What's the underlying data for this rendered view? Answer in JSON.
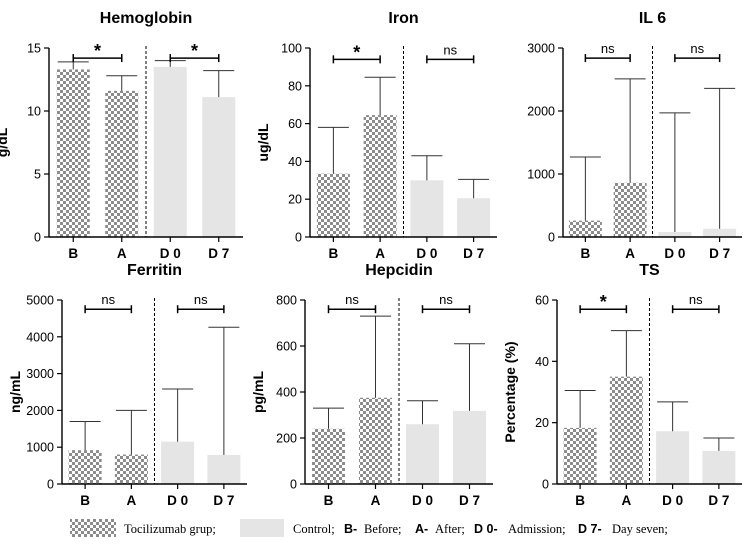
{
  "colors": {
    "control": "#e5e5e5",
    "hatch_dark": "#8c8c8c",
    "hatch_light": "#ffffff",
    "axis": "#000000"
  },
  "legend": {
    "tcz": "Tocilizumab grup;",
    "control": "Control;",
    "b_key": "B-",
    "b_text": "Before;",
    "a_key": "A-",
    "a_text": "After;",
    "d0_key": "D 0-",
    "d0_text": "Admission;",
    "d7_key": "D 7-",
    "d7_text": "Day seven;"
  },
  "chart_data": [
    {
      "type": "bar",
      "title": "Hemoglobin",
      "ylabel": "g/dL",
      "categories": [
        "B",
        "A",
        "D 0",
        "D 7"
      ],
      "values": [
        13.3,
        11.6,
        13.5,
        11.1
      ],
      "errors": [
        0.6,
        1.2,
        0.5,
        2.1
      ],
      "ylim": [
        0,
        15
      ],
      "yticks": [
        0,
        5,
        10,
        15
      ],
      "ytick_labels": [
        "0",
        "5",
        "10",
        "15"
      ],
      "significance": [
        {
          "label": "*",
          "from": 0,
          "to": 1,
          "y": 14.2
        },
        {
          "label": "*",
          "from": 2,
          "to": 3,
          "y": 14.2
        }
      ]
    },
    {
      "type": "bar",
      "title": "Iron",
      "ylabel": "ug/dL",
      "categories": [
        "B",
        "A",
        "D 0",
        "D 7"
      ],
      "values": [
        33.5,
        64.5,
        30,
        20.5
      ],
      "errors": [
        24.5,
        20,
        13,
        10
      ],
      "ylim": [
        0,
        100
      ],
      "yticks": [
        0,
        20,
        40,
        60,
        80,
        100
      ],
      "ytick_labels": [
        "0",
        "20",
        "40",
        "60",
        "80",
        "100"
      ],
      "significance": [
        {
          "label": "*",
          "from": 0,
          "to": 1,
          "y": 94
        },
        {
          "label": "ns",
          "from": 2,
          "to": 3,
          "y": 94
        }
      ]
    },
    {
      "type": "bar",
      "title": "IL 6",
      "ylabel": "",
      "categories": [
        "B",
        "A",
        "D 0",
        "D 7"
      ],
      "values": [
        260,
        860,
        80,
        130
      ],
      "errors": [
        1010,
        1650,
        1890,
        2230
      ],
      "ylim": [
        0,
        3000
      ],
      "yticks": [
        0,
        1000,
        2000,
        3000
      ],
      "ytick_labels": [
        "0",
        "1000",
        "2000",
        "3000"
      ],
      "significance": [
        {
          "label": "ns",
          "from": 0,
          "to": 1,
          "y": 2840
        },
        {
          "label": "ns",
          "from": 2,
          "to": 3,
          "y": 2840
        }
      ]
    },
    {
      "type": "bar",
      "title": "Ferritin",
      "ylabel": "ng/mL",
      "categories": [
        "B",
        "A",
        "D 0",
        "D 7"
      ],
      "values": [
        920,
        800,
        1150,
        790
      ],
      "errors": [
        780,
        1200,
        1430,
        3470
      ],
      "ylim": [
        0,
        5000
      ],
      "yticks": [
        0,
        1000,
        2000,
        3000,
        4000,
        5000
      ],
      "ytick_labels": [
        "0",
        "1000",
        "2000",
        "3000",
        "4000",
        "5000"
      ],
      "significance": [
        {
          "label": "ns",
          "from": 0,
          "to": 1,
          "y": 4750
        },
        {
          "label": "ns",
          "from": 2,
          "to": 3,
          "y": 4750
        }
      ]
    },
    {
      "type": "bar",
      "title": "Hepcidin",
      "ylabel": "pg/mL",
      "categories": [
        "B",
        "A",
        "D 0",
        "D 7"
      ],
      "values": [
        240,
        375,
        260,
        318
      ],
      "errors": [
        90,
        355,
        102,
        292
      ],
      "ylim": [
        0,
        800
      ],
      "yticks": [
        0,
        200,
        400,
        600,
        800
      ],
      "ytick_labels": [
        "0",
        "200",
        "400",
        "600",
        "800"
      ],
      "significance": [
        {
          "label": "ns",
          "from": 0,
          "to": 1,
          "y": 760
        },
        {
          "label": "ns",
          "from": 2,
          "to": 3,
          "y": 760
        }
      ]
    },
    {
      "type": "bar",
      "title": "TS",
      "ylabel": "Percentage (%)",
      "categories": [
        "B",
        "A",
        "D 0",
        "D 7"
      ],
      "values": [
        18.3,
        35,
        17.2,
        10.8
      ],
      "errors": [
        12.2,
        15,
        9.6,
        4.2
      ],
      "ylim": [
        0,
        60
      ],
      "yticks": [
        0,
        20,
        40,
        60
      ],
      "ytick_labels": [
        "0",
        "20",
        "40",
        "60"
      ],
      "significance": [
        {
          "label": "*",
          "from": 0,
          "to": 1,
          "y": 57
        },
        {
          "label": "ns",
          "from": 2,
          "to": 3,
          "y": 57
        }
      ]
    }
  ]
}
